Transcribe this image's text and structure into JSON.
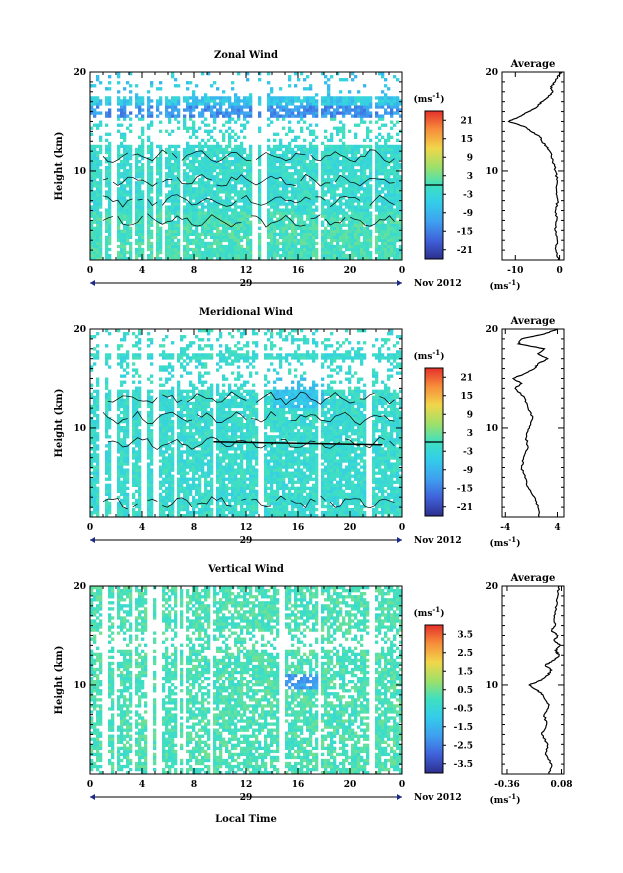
{
  "chart_data": [
    {
      "type": "heatmap",
      "title": "Zonal Wind",
      "ylabel": "Height (km)",
      "xlim": [
        0,
        24
      ],
      "ylim": [
        1,
        20
      ],
      "xticks": [
        "0",
        "4",
        "8",
        "12",
        "16",
        "20",
        "0"
      ],
      "xtick_values": [
        0,
        4,
        8,
        12,
        16,
        20,
        24
      ],
      "yticks": [
        "10",
        "20"
      ],
      "ytick_values": [
        10,
        20
      ],
      "day_label": "29",
      "date_label": "Nov 2012",
      "colorbar": {
        "unit": "(ms",
        "unit_exp": "-1",
        "unit_close": ")",
        "labels": [
          "21",
          "15",
          "9",
          "3",
          "-3",
          "-9",
          "-15",
          "-21"
        ],
        "range": [
          -24,
          24
        ],
        "marker": 0
      },
      "average_profile": {
        "title": "Average",
        "xlabel": "(ms",
        "xlabel_exp": "-1",
        "xlabel_close": ")",
        "xticks": [
          "-10",
          "0"
        ],
        "xtick_values": [
          -10,
          0
        ],
        "xlim": [
          -13,
          1
        ],
        "yticks": [
          "10",
          "20"
        ],
        "heights": [
          1,
          2,
          3,
          4,
          5,
          6,
          7,
          8,
          9,
          10,
          11,
          12,
          12.5,
          13,
          13.5,
          14,
          14.5,
          15,
          15.5,
          16,
          16.5,
          17,
          17.5,
          18,
          18.5,
          19,
          19.5,
          20
        ],
        "values": [
          -0.3,
          -0.8,
          -0.5,
          -1.0,
          -0.6,
          -0.9,
          -0.4,
          -0.7,
          -0.5,
          -0.9,
          -1.5,
          -2.2,
          -3.0,
          -4.0,
          -4.5,
          -6.5,
          -8.0,
          -11.5,
          -9.0,
          -7.0,
          -5.0,
          -4.0,
          -2.5,
          -1.5,
          -2.0,
          -1.0,
          -0.5,
          0.5
        ]
      }
    },
    {
      "type": "heatmap",
      "title": "Meridional Wind",
      "ylabel": "Height (km)",
      "xlim": [
        0,
        24
      ],
      "ylim": [
        1,
        20
      ],
      "xticks": [
        "0",
        "4",
        "8",
        "12",
        "16",
        "20",
        "0"
      ],
      "xtick_values": [
        0,
        4,
        8,
        12,
        16,
        20,
        24
      ],
      "yticks": [
        "10",
        "20"
      ],
      "ytick_values": [
        10,
        20
      ],
      "day_label": "29",
      "date_label": "Nov 2012",
      "colorbar": {
        "unit": "(ms",
        "unit_exp": "-1",
        "unit_close": ")",
        "labels": [
          "21",
          "15",
          "9",
          "3",
          "-3",
          "-9",
          "-15",
          "-21"
        ],
        "range": [
          -24,
          24
        ],
        "marker": 0
      },
      "average_profile": {
        "title": "Average",
        "xlabel": "(ms",
        "xlabel_exp": "-1",
        "xlabel_close": ")",
        "xticks": [
          "-4",
          "4"
        ],
        "xtick_values": [
          -4,
          4
        ],
        "xlim": [
          -4.5,
          5
        ],
        "yticks": [
          "10",
          "20"
        ],
        "heights": [
          1,
          2,
          3,
          4,
          5,
          6,
          7,
          8,
          9,
          10,
          11,
          12,
          13,
          14,
          14.5,
          15,
          15.5,
          16,
          16.5,
          17,
          17.5,
          18,
          18.5,
          19,
          19.5,
          20
        ],
        "values": [
          1.2,
          1.0,
          0.5,
          -0.5,
          -1.0,
          -1.5,
          -1.2,
          -0.5,
          -0.8,
          -0.3,
          0.2,
          -0.5,
          -1.0,
          -2.5,
          -1.5,
          -2.8,
          -1.0,
          0.5,
          1.0,
          2.5,
          1.0,
          2.0,
          -2.0,
          -1.5,
          2.0,
          4.0
        ]
      }
    },
    {
      "type": "heatmap",
      "title": "Vertical Wind",
      "ylabel": "Height (km)",
      "xlabel": "Local Time",
      "xlim": [
        0,
        24
      ],
      "ylim": [
        1,
        20
      ],
      "xticks": [
        "0",
        "4",
        "8",
        "12",
        "16",
        "20",
        "0"
      ],
      "xtick_values": [
        0,
        4,
        8,
        12,
        16,
        20,
        24
      ],
      "yticks": [
        "10",
        "20"
      ],
      "ytick_values": [
        10,
        20
      ],
      "day_label": "29",
      "date_label": "Nov 2012",
      "colorbar": {
        "unit": "(ms",
        "unit_exp": "-1",
        "unit_close": ")",
        "labels": [
          "3.5",
          "2.5",
          "1.5",
          "0.5",
          "-0.5",
          "-1.5",
          "-2.5",
          "-3.5"
        ],
        "range": [
          -4,
          4
        ],
        "marker": null
      },
      "average_profile": {
        "title": "Average",
        "xlabel": "(ms",
        "xlabel_exp": "-1",
        "xlabel_close": ")",
        "xticks": [
          "-0.36",
          "0.08"
        ],
        "xtick_values": [
          -0.36,
          0.08
        ],
        "xlim": [
          -0.4,
          0.1
        ],
        "yticks": [
          "10",
          "20"
        ],
        "heights": [
          1,
          2,
          3,
          4,
          5,
          6,
          7,
          8,
          9,
          9.5,
          10,
          10.5,
          11,
          11.5,
          12,
          12.5,
          13,
          13.5,
          14,
          14.5,
          15,
          15.5,
          16,
          17,
          18,
          19,
          20
        ],
        "values": [
          -0.02,
          0.0,
          -0.05,
          -0.03,
          -0.08,
          -0.04,
          -0.06,
          -0.02,
          -0.07,
          -0.12,
          -0.18,
          -0.08,
          -0.03,
          0.0,
          -0.05,
          0.02,
          0.06,
          0.03,
          0.07,
          0.02,
          0.05,
          0.0,
          0.03,
          0.02,
          0.04,
          0.05,
          0.06
        ]
      }
    }
  ]
}
